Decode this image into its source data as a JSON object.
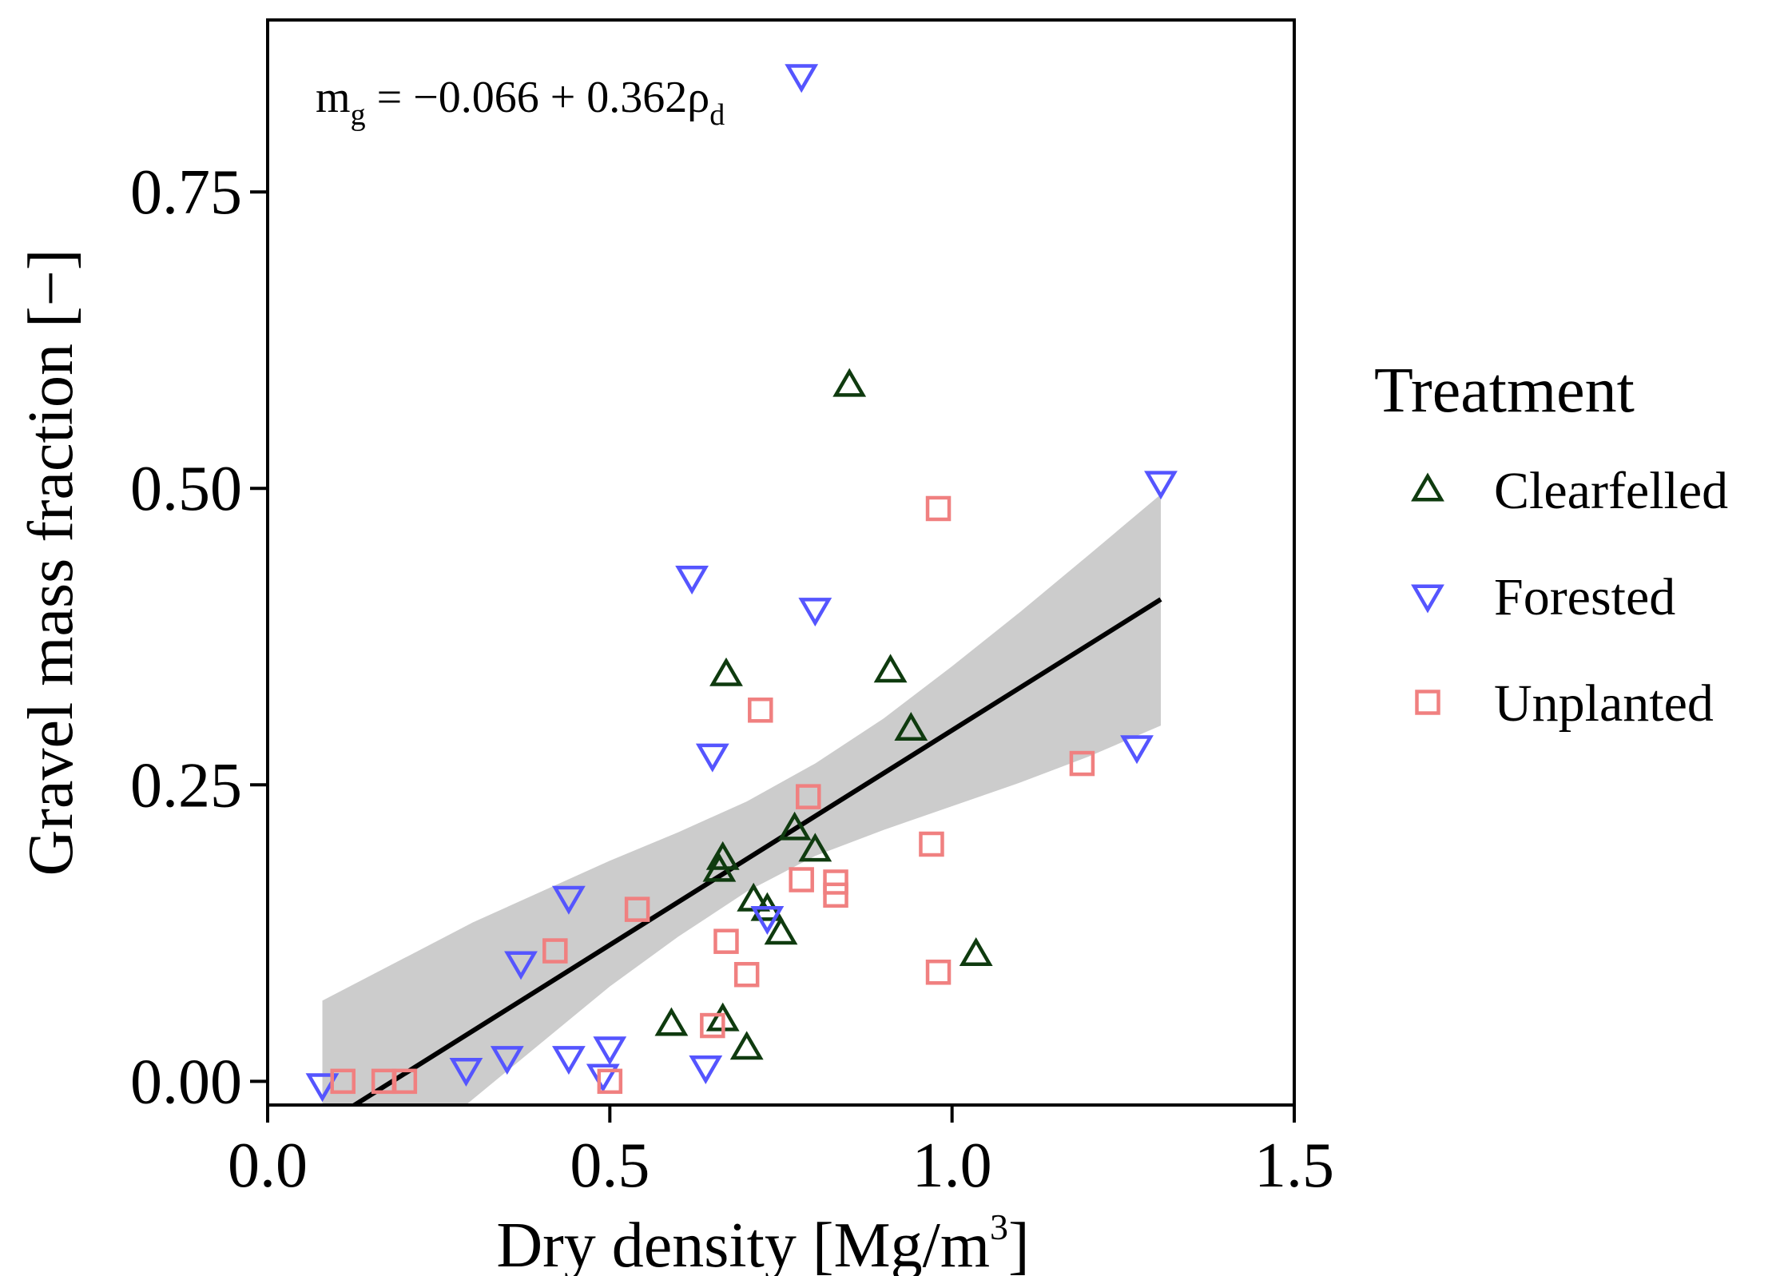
{
  "chart_data": {
    "type": "scatter",
    "xlabel": "Dry density [Mg/m",
    "xlabel_sup": "3",
    "xlabel_end": "]",
    "ylabel": "Gravel mass fraction [−]",
    "xlim": [
      0.0,
      1.5
    ],
    "ylim": [
      -0.02,
      0.895
    ],
    "x_ticks": [
      "0.0",
      "0.5",
      "1.0",
      "1.5"
    ],
    "x_tick_values": [
      0.0,
      0.5,
      1.0,
      1.5
    ],
    "y_ticks": [
      "0.00",
      "0.25",
      "0.50",
      "0.75"
    ],
    "y_tick_values": [
      0.0,
      0.25,
      0.5,
      0.75
    ],
    "annotation": {
      "m": "m",
      "m_sub": "g",
      "eq": " = −0.066 + 0.362ρ",
      "rho_sub": "d"
    },
    "legend": {
      "title": "Treatment",
      "position": "right"
    },
    "fit": {
      "intercept": -0.066,
      "slope": 0.362,
      "x_range": [
        0.08,
        1.305
      ],
      "band": [
        [
          0.08,
          -0.12,
          0.068
        ],
        [
          0.3,
          -0.015,
          0.134
        ],
        [
          0.5,
          0.08,
          0.186
        ],
        [
          0.6,
          0.122,
          0.21
        ],
        [
          0.7,
          0.16,
          0.236
        ],
        [
          0.8,
          0.19,
          0.268
        ],
        [
          0.9,
          0.212,
          0.306
        ],
        [
          1.0,
          0.232,
          0.35
        ],
        [
          1.1,
          0.252,
          0.396
        ],
        [
          1.2,
          0.274,
          0.444
        ],
        [
          1.305,
          0.3,
          0.495
        ]
      ],
      "line_color": "#000000",
      "band_color": "#cccccc"
    },
    "series": [
      {
        "name": "Clearfelled",
        "marker": "triangle-up",
        "color": "#0f3b0f",
        "points": [
          [
            0.85,
            0.587
          ],
          [
            0.67,
            0.343
          ],
          [
            0.91,
            0.346
          ],
          [
            0.94,
            0.297
          ],
          [
            0.77,
            0.213
          ],
          [
            0.8,
            0.195
          ],
          [
            0.665,
            0.188
          ],
          [
            0.66,
            0.178
          ],
          [
            0.71,
            0.153
          ],
          [
            0.73,
            0.145
          ],
          [
            0.75,
            0.125
          ],
          [
            1.035,
            0.107
          ],
          [
            0.59,
            0.048
          ],
          [
            0.665,
            0.052
          ],
          [
            0.7,
            0.028
          ]
        ]
      },
      {
        "name": "Forested",
        "marker": "triangle-down",
        "color": "#5555ff",
        "points": [
          [
            0.78,
            0.848
          ],
          [
            1.305,
            0.505
          ],
          [
            0.62,
            0.425
          ],
          [
            0.8,
            0.398
          ],
          [
            0.65,
            0.275
          ],
          [
            1.27,
            0.282
          ],
          [
            0.44,
            0.155
          ],
          [
            0.73,
            0.138
          ],
          [
            0.37,
            0.1
          ],
          [
            0.08,
            -0.003
          ],
          [
            0.29,
            0.01
          ],
          [
            0.35,
            0.02
          ],
          [
            0.44,
            0.02
          ],
          [
            0.5,
            0.028
          ],
          [
            0.49,
            0.005
          ],
          [
            0.64,
            0.012
          ]
        ]
      },
      {
        "name": "Unplanted",
        "marker": "square",
        "color": "#f08080",
        "points": [
          [
            0.98,
            0.483
          ],
          [
            0.72,
            0.313
          ],
          [
            0.79,
            0.24
          ],
          [
            1.19,
            0.268
          ],
          [
            0.97,
            0.2
          ],
          [
            0.78,
            0.17
          ],
          [
            0.83,
            0.168
          ],
          [
            0.83,
            0.157
          ],
          [
            0.54,
            0.145
          ],
          [
            0.67,
            0.118
          ],
          [
            0.42,
            0.11
          ],
          [
            0.7,
            0.09
          ],
          [
            0.98,
            0.092
          ],
          [
            0.65,
            0.047
          ],
          [
            0.11,
            0.0
          ],
          [
            0.17,
            0.0
          ],
          [
            0.2,
            0.0
          ],
          [
            0.5,
            0.0
          ]
        ]
      }
    ]
  }
}
